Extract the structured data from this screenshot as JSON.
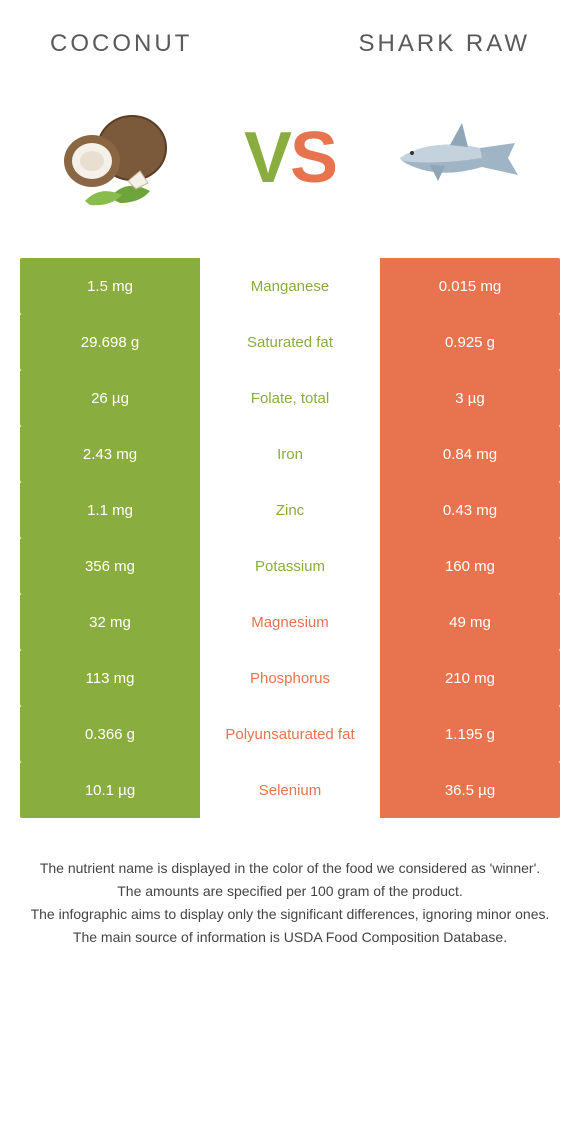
{
  "colors": {
    "left": "#8aad3f",
    "right": "#e8744f",
    "left_text": "#8aad3f",
    "right_text": "#e8744f",
    "bg": "#ffffff"
  },
  "header": {
    "left_title": "Coconut",
    "right_title": "Shark Raw"
  },
  "vs": {
    "v": "V",
    "s": "S"
  },
  "rows": [
    {
      "left": "1.5 mg",
      "label": "Manganese",
      "right": "0.015 mg",
      "winner": "left"
    },
    {
      "left": "29.698 g",
      "label": "Saturated fat",
      "right": "0.925 g",
      "winner": "left"
    },
    {
      "left": "26 µg",
      "label": "Folate, total",
      "right": "3 µg",
      "winner": "left"
    },
    {
      "left": "2.43 mg",
      "label": "Iron",
      "right": "0.84 mg",
      "winner": "left"
    },
    {
      "left": "1.1 mg",
      "label": "Zinc",
      "right": "0.43 mg",
      "winner": "left"
    },
    {
      "left": "356 mg",
      "label": "Potassium",
      "right": "160 mg",
      "winner": "left"
    },
    {
      "left": "32 mg",
      "label": "Magnesium",
      "right": "49 mg",
      "winner": "right"
    },
    {
      "left": "113 mg",
      "label": "Phosphorus",
      "right": "210 mg",
      "winner": "right"
    },
    {
      "left": "0.366 g",
      "label": "Polyunsaturated fat",
      "right": "1.195 g",
      "winner": "right"
    },
    {
      "left": "10.1 µg",
      "label": "Selenium",
      "right": "36.5 µg",
      "winner": "right"
    }
  ],
  "footer": {
    "line1": "The nutrient name is displayed in the color of the food we considered as 'winner'.",
    "line2": "The amounts are specified per 100 gram of the product.",
    "line3": "The infographic aims to display only the significant differences, ignoring minor ones.",
    "line4": "The main source of information is USDA Food Composition Database."
  }
}
